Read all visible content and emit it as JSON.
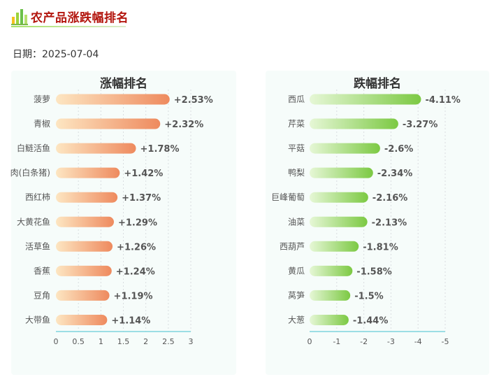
{
  "header": {
    "title": "农产品涨跌幅排名",
    "date_label": "日期：2025-07-04"
  },
  "colors": {
    "rise_start": "#fde6c2",
    "rise_end": "#ee8a5e",
    "fall_start": "#e6f7d6",
    "fall_end": "#7cc943",
    "title_red": "#b3160e"
  },
  "chart_data": [
    {
      "type": "bar",
      "orientation": "horizontal",
      "title": "涨幅排名",
      "categories": [
        "菠萝",
        "青椒",
        "白鲢活鱼",
        "肉(白条猪)",
        "西红柿",
        "大黄花鱼",
        "活草鱼",
        "香蕉",
        "豆角",
        "大带鱼"
      ],
      "values": [
        2.53,
        2.32,
        1.78,
        1.42,
        1.37,
        1.29,
        1.26,
        1.24,
        1.19,
        1.14
      ],
      "data_labels": [
        "+2.53%",
        "+2.32%",
        "+1.78%",
        "+1.42%",
        "+1.37%",
        "+1.29%",
        "+1.26%",
        "+1.24%",
        "+1.19%",
        "+1.14%"
      ],
      "xlim": [
        0,
        3
      ],
      "ticks": [
        "0",
        "0.5",
        "1",
        "1.5",
        "2",
        "2.5",
        "3"
      ],
      "grid": true
    },
    {
      "type": "bar",
      "orientation": "horizontal",
      "title": "跌幅排名",
      "categories": [
        "西瓜",
        "芹菜",
        "平菇",
        "鸭梨",
        "巨峰葡萄",
        "油菜",
        "西葫芦",
        "黄瓜",
        "莴笋",
        "大葱"
      ],
      "values": [
        -4.11,
        -3.27,
        -2.6,
        -2.34,
        -2.16,
        -2.13,
        -1.81,
        -1.58,
        -1.5,
        -1.44
      ],
      "data_labels": [
        "-4.11%",
        "-3.27%",
        "-2.6%",
        "-2.34%",
        "-2.16%",
        "-2.13%",
        "-1.81%",
        "-1.58%",
        "-1.5%",
        "-1.44%"
      ],
      "xlim": [
        0,
        -5
      ],
      "ticks": [
        "0",
        "-1",
        "-2",
        "-3",
        "-4",
        "-5"
      ],
      "grid": true
    }
  ]
}
